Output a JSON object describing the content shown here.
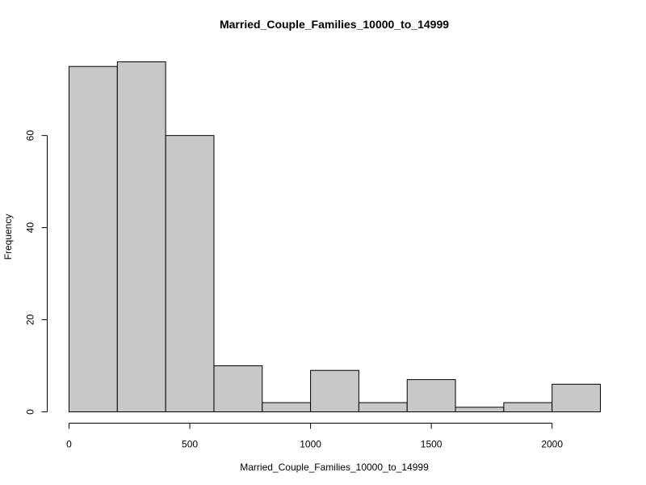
{
  "chart_data": {
    "type": "bar",
    "title": "Married_Couple_Families_10000_to_14999",
    "xlabel": "Married_Couple_Families_10000_to_14999",
    "ylabel": "Frequency",
    "bins": [
      {
        "from": 0,
        "to": 200,
        "count": 75
      },
      {
        "from": 200,
        "to": 400,
        "count": 76
      },
      {
        "from": 400,
        "to": 600,
        "count": 60
      },
      {
        "from": 600,
        "to": 800,
        "count": 10
      },
      {
        "from": 800,
        "to": 1000,
        "count": 2
      },
      {
        "from": 1000,
        "to": 1200,
        "count": 9
      },
      {
        "from": 1200,
        "to": 1400,
        "count": 2
      },
      {
        "from": 1400,
        "to": 1600,
        "count": 7
      },
      {
        "from": 1600,
        "to": 1800,
        "count": 1
      },
      {
        "from": 1800,
        "to": 2000,
        "count": 2
      },
      {
        "from": 2000,
        "to": 2200,
        "count": 6
      }
    ],
    "xticks": [
      {
        "value": 0,
        "label": "0"
      },
      {
        "value": 500,
        "label": "500"
      },
      {
        "value": 1000,
        "label": "1000"
      },
      {
        "value": 1500,
        "label": "1500"
      },
      {
        "value": 2000,
        "label": "2000"
      }
    ],
    "yticks": [
      {
        "value": 0,
        "label": "0"
      },
      {
        "value": 20,
        "label": "20"
      },
      {
        "value": 40,
        "label": "40"
      },
      {
        "value": 60,
        "label": "60"
      }
    ],
    "xlim": [
      0,
      2200
    ],
    "ylim": [
      0,
      76
    ],
    "bar_fill": "#c8c8c8",
    "bar_stroke": "#000000",
    "grid": false,
    "legend": "none"
  }
}
